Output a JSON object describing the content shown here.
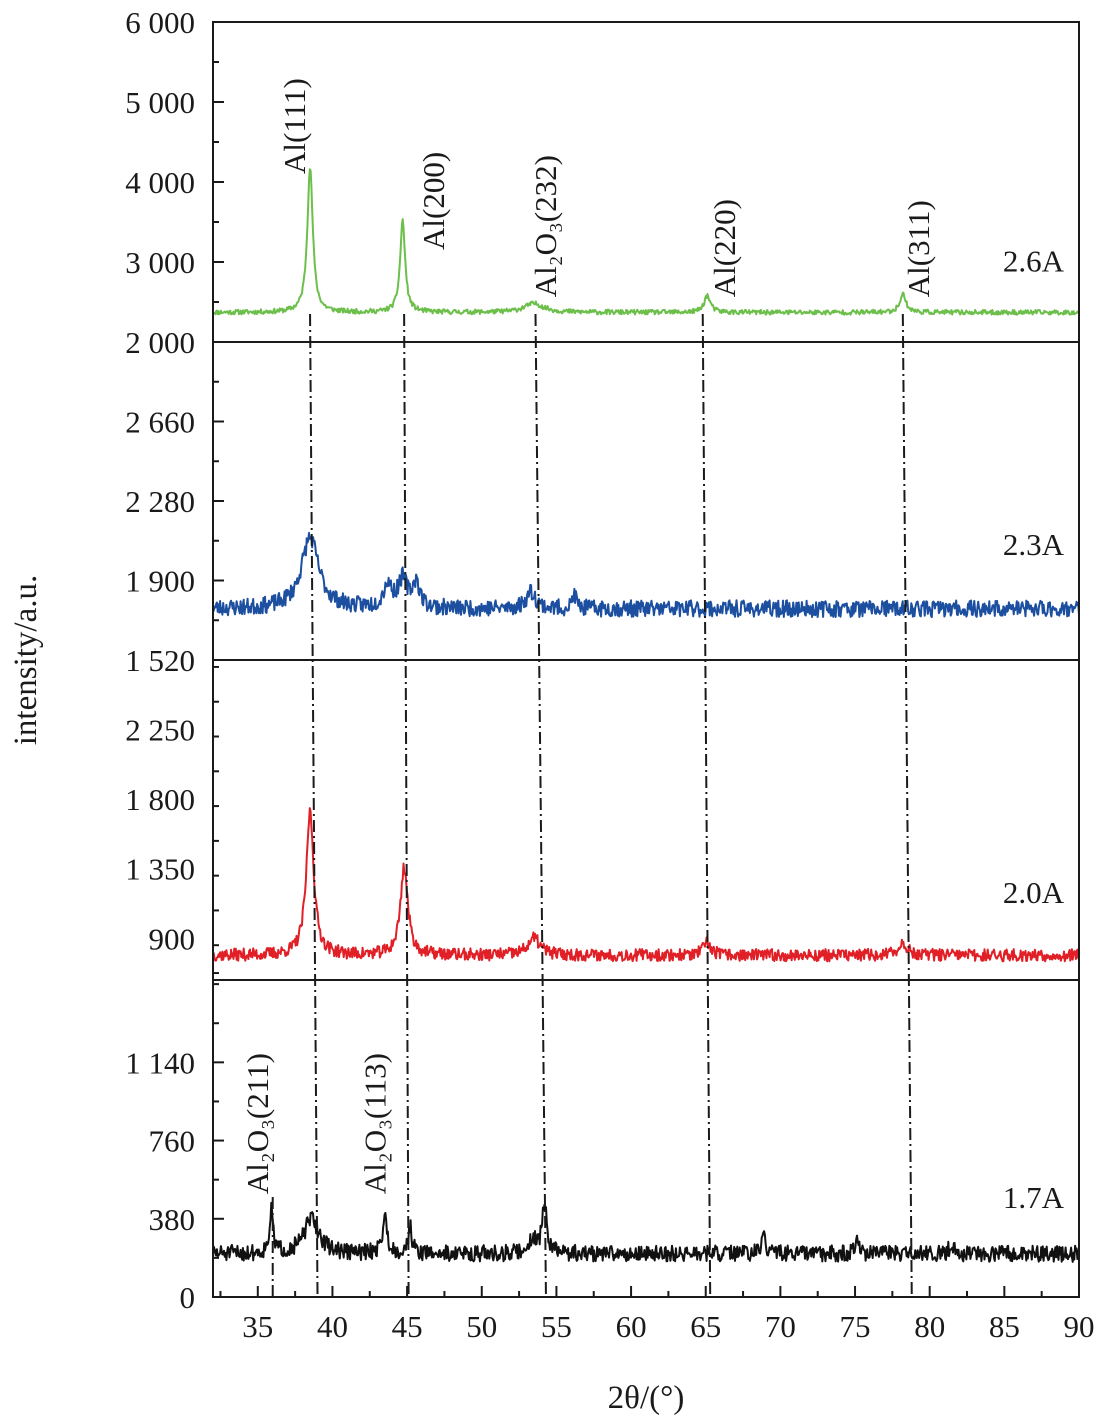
{
  "chart_data": {
    "type": "line",
    "xlabel": "2θ/(°)",
    "ylabel": "intensity/a.u.",
    "xlim": [
      32,
      90
    ],
    "x_ticks": [
      "35",
      "40",
      "45",
      "50",
      "55",
      "60",
      "65",
      "70",
      "75",
      "80",
      "85",
      "90"
    ],
    "grid": false,
    "panels": [
      {
        "name": "2.6A",
        "color": "#6cbf4a",
        "ylim": [
          2000,
          6000
        ],
        "y_ticks": [
          {
            "v": 2000,
            "label": "2 000"
          },
          {
            "v": 3000,
            "label": "3 000"
          },
          {
            "v": 4000,
            "label": "4 000"
          },
          {
            "v": 5000,
            "label": "5 000"
          },
          {
            "v": 6000,
            "label": "6 000"
          }
        ],
        "baseline": 2370,
        "noise": 30,
        "seed": 11,
        "peaks": [
          {
            "x": 38.5,
            "h": 1820,
            "w": 0.22
          },
          {
            "x": 44.7,
            "h": 1150,
            "w": 0.2
          },
          {
            "x": 53.5,
            "h": 110,
            "w": 0.8
          },
          {
            "x": 65.1,
            "h": 210,
            "w": 0.25
          },
          {
            "x": 78.2,
            "h": 230,
            "w": 0.25
          }
        ],
        "peak_labels": [
          {
            "text": "Al(111)",
            "x": 37.5,
            "y": 4100
          },
          {
            "text": "Al(200)",
            "x": 46.8,
            "y": 3150
          },
          {
            "text": "Al₂O₃(232)",
            "x": 54.3,
            "y": 2560
          },
          {
            "text": "Al(220)",
            "x": 66.3,
            "y": 2560
          },
          {
            "text": "Al(311)",
            "x": 79.3,
            "y": 2560
          }
        ]
      },
      {
        "name": "2.3A",
        "color": "#1c4fa0",
        "ylim": [
          1520,
          3040
        ],
        "y_ticks": [
          {
            "v": 1520,
            "label": "1 520"
          },
          {
            "v": 1900,
            "label": "1 900"
          },
          {
            "v": 2280,
            "label": "2 280"
          },
          {
            "v": 2660,
            "label": "2 660"
          }
        ],
        "baseline": 1765,
        "noise": 40,
        "seed": 23,
        "peaks": [
          {
            "x": 38.5,
            "h": 340,
            "w": 0.7
          },
          {
            "x": 43.7,
            "h": 110,
            "w": 0.35
          },
          {
            "x": 44.7,
            "h": 130,
            "w": 0.35
          },
          {
            "x": 45.6,
            "h": 120,
            "w": 0.3
          },
          {
            "x": 53.3,
            "h": 80,
            "w": 0.4
          },
          {
            "x": 56.2,
            "h": 70,
            "w": 0.15
          }
        ],
        "peak_labels": []
      },
      {
        "name": "2.0A",
        "color": "#e01f26",
        "ylim": [
          630,
          2700
        ],
        "y_ticks": [
          {
            "v": 900,
            "label": "900"
          },
          {
            "v": 1350,
            "label": "1 350"
          },
          {
            "v": 1800,
            "label": "1 800"
          },
          {
            "v": 2250,
            "label": "2 250"
          }
        ],
        "baseline": 790,
        "noise": 40,
        "seed": 37,
        "peaks": [
          {
            "x": 38.5,
            "h": 930,
            "w": 0.3
          },
          {
            "x": 44.8,
            "h": 570,
            "w": 0.3
          },
          {
            "x": 53.5,
            "h": 110,
            "w": 0.5
          },
          {
            "x": 65.1,
            "h": 80,
            "w": 0.3
          },
          {
            "x": 78.2,
            "h": 90,
            "w": 0.3
          }
        ],
        "peak_labels": []
      },
      {
        "name": "1.7A",
        "color": "#111111",
        "ylim": [
          0,
          1540
        ],
        "y_ticks": [
          {
            "v": 0,
            "label": "0"
          },
          {
            "v": 380,
            "label": "380"
          },
          {
            "v": 760,
            "label": "760"
          },
          {
            "v": 1140,
            "label": "1 140"
          }
        ],
        "baseline": 210,
        "noise": 40,
        "seed": 51,
        "peaks": [
          {
            "x": 35.9,
            "h": 200,
            "w": 0.15
          },
          {
            "x": 38.6,
            "h": 170,
            "w": 0.6
          },
          {
            "x": 43.5,
            "h": 170,
            "w": 0.2
          },
          {
            "x": 45.2,
            "h": 130,
            "w": 0.15
          },
          {
            "x": 53.4,
            "h": 70,
            "w": 0.3
          },
          {
            "x": 54.2,
            "h": 230,
            "w": 0.2
          },
          {
            "x": 68.9,
            "h": 70,
            "w": 0.2
          },
          {
            "x": 75.1,
            "h": 70,
            "w": 0.15
          },
          {
            "x": 81.5,
            "h": 50,
            "w": 0.2
          }
        ],
        "peak_labels": [
          {
            "text": "Al₂O₃(211)",
            "x": 35.0,
            "y": 500
          },
          {
            "text": "Al₂O₃(113)",
            "x": 42.9,
            "y": 500
          }
        ]
      }
    ],
    "guide_lines": [
      {
        "x_top": 38.5,
        "x_bottom": 39.0
      },
      {
        "x_top": 44.8,
        "x_bottom": 45.1
      },
      {
        "x_top": 53.6,
        "x_bottom": 54.3
      },
      {
        "x_top": 64.8,
        "x_bottom": 65.3
      },
      {
        "x_top": 78.2,
        "x_bottom": 78.8
      }
    ],
    "guide_lines_bottom_extra": [
      {
        "x": 36.0
      }
    ]
  }
}
